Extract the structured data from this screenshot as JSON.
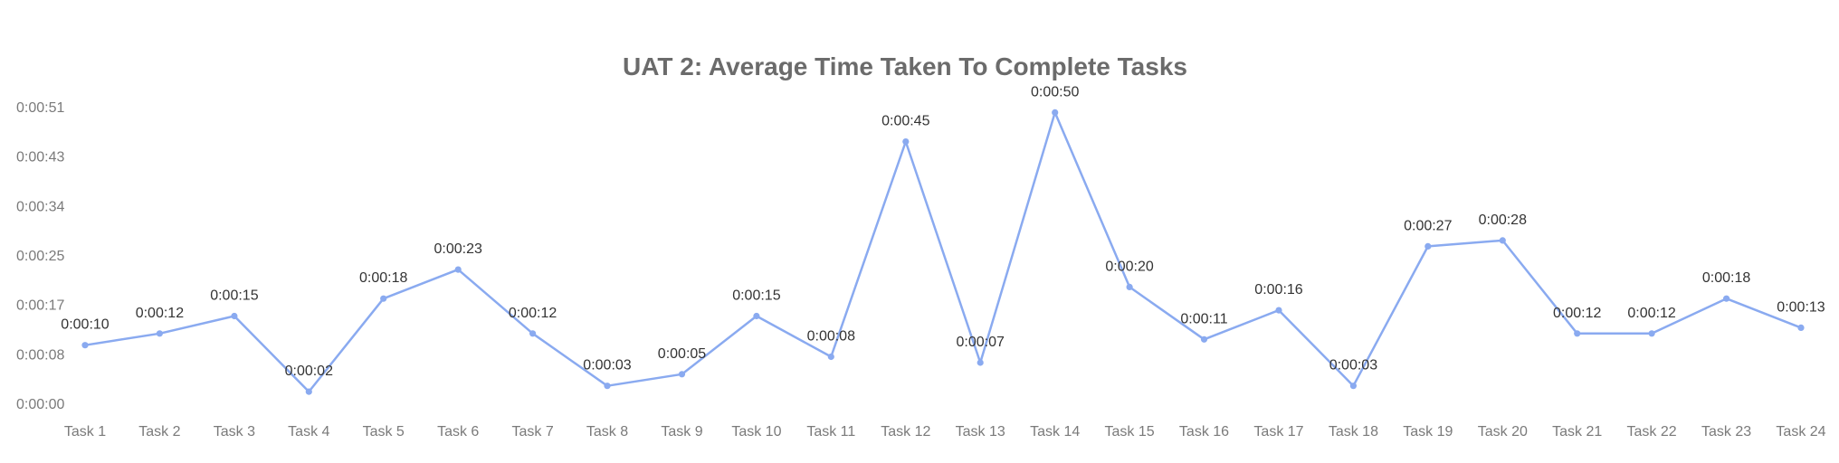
{
  "chart_data": {
    "type": "line",
    "title": "UAT 2: Average Time Taken To Complete Tasks",
    "xlabel": "",
    "ylabel": "",
    "categories": [
      "Task 1",
      "Task 2",
      "Task 3",
      "Task 4",
      "Task 5",
      "Task 6",
      "Task 7",
      "Task 8",
      "Task 9",
      "Task 10",
      "Task 11",
      "Task 12",
      "Task 13",
      "Task 14",
      "Task 15",
      "Task 16",
      "Task 17",
      "Task 18",
      "Task 19",
      "Task 20",
      "Task 21",
      "Task 22",
      "Task 23",
      "Task 24"
    ],
    "series": [
      {
        "values": [
          10,
          12,
          15,
          2,
          18,
          23,
          12,
          3,
          5,
          15,
          8,
          45,
          7,
          50,
          20,
          11,
          16,
          3,
          27,
          28,
          12,
          12,
          18,
          13
        ],
        "labels": [
          "0:00:10",
          "0:00:12",
          "0:00:15",
          "0:00:02",
          "0:00:18",
          "0:00:23",
          "0:00:12",
          "0:00:03",
          "0:00:05",
          "0:00:15",
          "0:00:08",
          "0:00:45",
          "0:00:07",
          "0:00:50",
          "0:00:20",
          "0:00:11",
          "0:00:16",
          "0:00:03",
          "0:00:27",
          "0:00:28",
          "0:00:12",
          "0:00:12",
          "0:00:18",
          "0:00:13"
        ],
        "color": "#8aaaf0"
      }
    ],
    "y_ticks": [
      {
        "value": 0,
        "label": "0:00:00"
      },
      {
        "value": 8.5,
        "label": "0:00:08"
      },
      {
        "value": 17,
        "label": "0:00:17"
      },
      {
        "value": 25.5,
        "label": "0:00:25"
      },
      {
        "value": 34,
        "label": "0:00:34"
      },
      {
        "value": 42.5,
        "label": "0:00:43"
      },
      {
        "value": 51,
        "label": "0:00:51"
      }
    ],
    "ylim": [
      0,
      51
    ],
    "grid": false,
    "legend": "none"
  }
}
